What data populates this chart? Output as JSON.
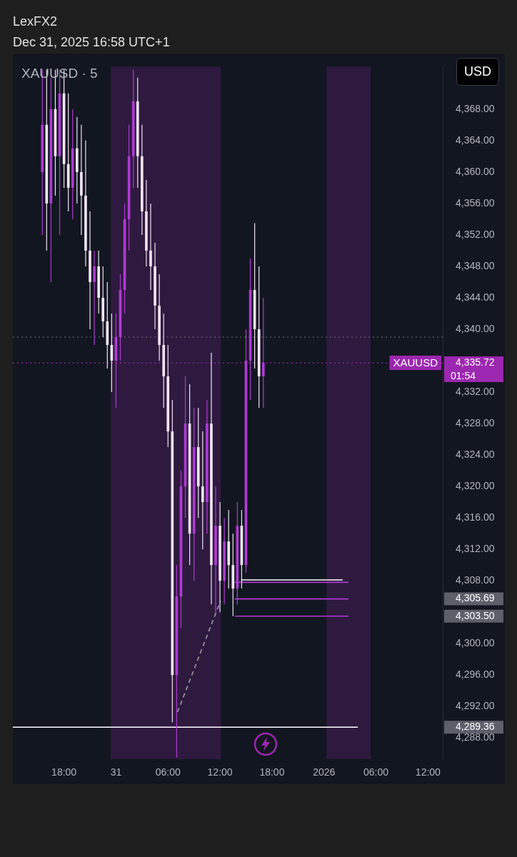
{
  "chart_data": {
    "type": "candlestick",
    "title": "LexFX2",
    "subtitle": "Dec 31, 2025 16:58 UTC+1",
    "x": [
      "2025-12-30T15:30",
      "2025-12-30T16:00",
      "2025-12-30T16:30",
      "2025-12-30T17:00",
      "2025-12-30T17:30",
      "2025-12-30T18:00",
      "2025-12-30T18:30",
      "2025-12-30T19:00",
      "2025-12-30T19:30",
      "2025-12-30T20:00",
      "2025-12-30T20:30",
      "2025-12-30T21:00",
      "2025-12-30T21:30",
      "2025-12-30T22:00",
      "2025-12-30T22:30",
      "2025-12-30T23:00",
      "2025-12-30T23:30",
      "2025-12-31T00:00",
      "2025-12-31T00:30",
      "2025-12-31T01:00",
      "2025-12-31T01:30",
      "2025-12-31T02:00",
      "2025-12-31T02:30",
      "2025-12-31T03:00",
      "2025-12-31T03:30",
      "2025-12-31T04:00",
      "2025-12-31T04:30",
      "2025-12-31T05:00",
      "2025-12-31T05:30",
      "2025-12-31T06:00",
      "2025-12-31T06:30",
      "2025-12-31T07:00",
      "2025-12-31T07:30",
      "2025-12-31T08:00",
      "2025-12-31T08:30",
      "2025-12-31T09:00",
      "2025-12-31T09:30",
      "2025-12-31T10:00",
      "2025-12-31T10:30",
      "2025-12-31T11:00",
      "2025-12-31T11:30",
      "2025-12-31T12:00",
      "2025-12-31T12:30",
      "2025-12-31T13:00",
      "2025-12-31T13:30",
      "2025-12-31T14:00",
      "2025-12-31T14:30",
      "2025-12-31T15:00",
      "2025-12-31T15:30",
      "2025-12-31T16:00",
      "2025-12-31T16:30",
      "2025-12-31T17:00"
    ],
    "ohlc": [
      [
        4360,
        4373,
        4352,
        4366
      ],
      [
        4366,
        4373,
        4350,
        4356
      ],
      [
        4356,
        4372,
        4346,
        4368
      ],
      [
        4368,
        4373,
        4357,
        4362
      ],
      [
        4362,
        4373,
        4352,
        4370
      ],
      [
        4370,
        4373,
        4358,
        4361
      ],
      [
        4361,
        4370,
        4355,
        4358
      ],
      [
        4358,
        4368,
        4354,
        4363
      ],
      [
        4363,
        4367,
        4356,
        4360
      ],
      [
        4360,
        4366,
        4352,
        4357
      ],
      [
        4357,
        4364,
        4348,
        4350
      ],
      [
        4350,
        4355,
        4340,
        4346
      ],
      [
        4346,
        4350,
        4338,
        4348
      ],
      [
        4348,
        4350,
        4342,
        4344
      ],
      [
        4344,
        4348,
        4339,
        4341
      ],
      [
        4341,
        4346,
        4335,
        4338
      ],
      [
        4338,
        4342,
        4332,
        4336
      ],
      [
        4336,
        4342,
        4330,
        4339
      ],
      [
        4339,
        4347,
        4336,
        4345
      ],
      [
        4345,
        4356,
        4342,
        4354
      ],
      [
        4354,
        4366,
        4350,
        4362
      ],
      [
        4362,
        4373,
        4358,
        4369
      ],
      [
        4369,
        4372,
        4358,
        4362
      ],
      [
        4362,
        4366,
        4352,
        4355
      ],
      [
        4355,
        4359,
        4348,
        4350
      ],
      [
        4350,
        4356,
        4345,
        4348
      ],
      [
        4348,
        4351,
        4340,
        4343
      ],
      [
        4343,
        4347,
        4336,
        4338
      ],
      [
        4338,
        4342,
        4330,
        4334
      ],
      [
        4334,
        4338,
        4325,
        4327
      ],
      [
        4327,
        4331,
        4290,
        4296
      ],
      [
        4296,
        4310,
        4285.5,
        4306
      ],
      [
        4306,
        4322,
        4302,
        4320
      ],
      [
        4320,
        4334,
        4316,
        4328
      ],
      [
        4328,
        4333,
        4310,
        4314
      ],
      [
        4314,
        4330,
        4308,
        4325
      ],
      [
        4325,
        4330,
        4316,
        4320
      ],
      [
        4320,
        4327,
        4312,
        4318
      ],
      [
        4318,
        4331,
        4314,
        4328
      ],
      [
        4328,
        4337,
        4305,
        4310
      ],
      [
        4310,
        4320,
        4304,
        4315
      ],
      [
        4315,
        4318,
        4304,
        4308
      ],
      [
        4308,
        4316,
        4305,
        4313
      ],
      [
        4313,
        4317,
        4307,
        4310
      ],
      [
        4310,
        4314,
        4303.5,
        4307
      ],
      [
        4307,
        4318,
        4305,
        4315
      ],
      [
        4315,
        4317,
        4307,
        4310
      ],
      [
        4310,
        4340,
        4309,
        4336
      ],
      [
        4336,
        4349,
        4331,
        4345
      ],
      [
        4345,
        4353.5,
        4335,
        4340
      ],
      [
        4340,
        4348,
        4330,
        4334
      ],
      [
        4334,
        4344,
        4330,
        4335.72
      ]
    ],
    "colors": [
      "#b03ad4",
      "#f3e5f5",
      "#b03ad4",
      "#f3e5f5",
      "#b03ad4",
      "#f3e5f5",
      "#f3e5f5",
      "#b03ad4",
      "#f3e5f5",
      "#f3e5f5",
      "#f3e5f5",
      "#f3e5f5",
      "#b03ad4",
      "#f3e5f5",
      "#f3e5f5",
      "#f3e5f5",
      "#f3e5f5",
      "#b03ad4",
      "#b03ad4",
      "#b03ad4",
      "#b03ad4",
      "#b03ad4",
      "#f3e5f5",
      "#f3e5f5",
      "#f3e5f5",
      "#f3e5f5",
      "#f3e5f5",
      "#f3e5f5",
      "#f3e5f5",
      "#f3e5f5",
      "#f3e5f5",
      "#b03ad4",
      "#b03ad4",
      "#b03ad4",
      "#f3e5f5",
      "#b03ad4",
      "#f3e5f5",
      "#f3e5f5",
      "#b03ad4",
      "#f3e5f5",
      "#b03ad4",
      "#f3e5f5",
      "#b03ad4",
      "#f3e5f5",
      "#f3e5f5",
      "#b03ad4",
      "#f3e5f5",
      "#b03ad4",
      "#b03ad4",
      "#f3e5f5",
      "#f3e5f5",
      "#b03ad4"
    ],
    "series": [
      {
        "type": "line",
        "color": "#ffffff",
        "x": [
          "2025-12-30T12:06",
          "2026-01-01T03:54"
        ],
        "values": [
          4289.36,
          4289.36
        ]
      },
      {
        "type": "line",
        "color": "#ffffff",
        "x": [
          "2025-12-31T14:26",
          "2026-01-01T02:10"
        ],
        "values": [
          4308.1,
          4308.1
        ]
      },
      {
        "type": "line",
        "color": "#b03ad4",
        "x": [
          "2025-12-31T13:42",
          "2026-01-01T02:49"
        ],
        "values": [
          4307.8,
          4307.8
        ]
      },
      {
        "type": "line",
        "color": "#b03ad4",
        "x": [
          "2025-12-31T13:42",
          "2026-01-01T02:49"
        ],
        "values": [
          4303.5,
          4303.5
        ]
      },
      {
        "type": "line",
        "color": "#b03ad4",
        "x": [
          "2025-12-31T13:42",
          "2026-01-01T02:49"
        ],
        "values": [
          4305.69,
          4305.69
        ]
      },
      {
        "type": "line",
        "color": "#9e9e9e",
        "line_style": "dashed",
        "x": [
          "2025-12-31T07:06",
          "2025-12-31T12:03"
        ],
        "values": [
          4291.3,
          4305.4
        ]
      }
    ],
    "marker": "none",
    "xlim": [
      "2025-12-30T12:06",
      "2026-01-01T13:42"
    ],
    "xticks": [
      {
        "value": "2025-12-30T18:00",
        "label": "18:00"
      },
      {
        "value": "2025-12-31T00:00",
        "label": "31"
      },
      {
        "value": "2025-12-31T06:00",
        "label": "06:00"
      },
      {
        "value": "2025-12-31T12:00",
        "label": "12:00"
      },
      {
        "value": "2025-12-31T18:00",
        "label": "18:00"
      },
      {
        "value": "2026-01-01T00:00",
        "label": "2026"
      },
      {
        "value": "2026-01-01T06:00",
        "label": "06:00"
      },
      {
        "value": "2026-01-01T12:00",
        "label": "12:00"
      }
    ],
    "ylim": [
      4285.3,
      4373.4
    ],
    "yticks": [
      {
        "value": 4288,
        "label": "4,288.00"
      },
      {
        "value": 4289.36,
        "label": "4,289.36"
      },
      {
        "value": 4303.5,
        "label": "4,303.50"
      },
      {
        "value": 4305.69,
        "label": "4,305.69"
      },
      {
        "value": 4335.72,
        "label": "4,335.72"
      },
      {
        "value": 4292,
        "label": "4,292.00"
      },
      {
        "value": 4296,
        "label": "4,296.00"
      },
      {
        "value": 4300,
        "label": "4,300.00"
      },
      {
        "value": 4308,
        "label": "4,308.00"
      },
      {
        "value": 4312,
        "label": "4,312.00"
      },
      {
        "value": 4316,
        "label": "4,316.00"
      },
      {
        "value": 4320,
        "label": "4,320.00"
      },
      {
        "value": 4324,
        "label": "4,324.00"
      },
      {
        "value": 4328,
        "label": "4,328.00"
      },
      {
        "value": 4332,
        "label": "4,332.00"
      },
      {
        "value": 4340,
        "label": "4,340.00"
      },
      {
        "value": 4344,
        "label": "4,344.00"
      },
      {
        "value": 4348,
        "label": "4,348.00"
      },
      {
        "value": 4352,
        "label": "4,352.00"
      },
      {
        "value": 4356,
        "label": "4,356.00"
      },
      {
        "value": 4360,
        "label": "4,360.00"
      },
      {
        "value": 4364,
        "label": "4,364.00"
      },
      {
        "value": 4368,
        "label": "4,368.00"
      }
    ],
    "bands": [
      {
        "axis": "x",
        "from": "2025-12-30T23:24",
        "to": "2025-12-31T12:06",
        "color": "#2e1a3f"
      },
      {
        "axis": "x",
        "from": "2026-01-01T00:17",
        "to": "2026-01-01T05:23",
        "color": "#2e1a3f"
      }
    ],
    "ref_lines": [
      {
        "axis": "y",
        "value": 4339.0,
        "color": "#6b6f7a",
        "line_style": "dotted"
      },
      {
        "axis": "y",
        "value": 4335.72,
        "label": "XAUUSD",
        "color": "#9c27b0",
        "line_style": "dotted"
      }
    ],
    "annotations": [
      "XAUUSD · 5",
      "USD",
      "01:54"
    ],
    "legend": false
  }
}
